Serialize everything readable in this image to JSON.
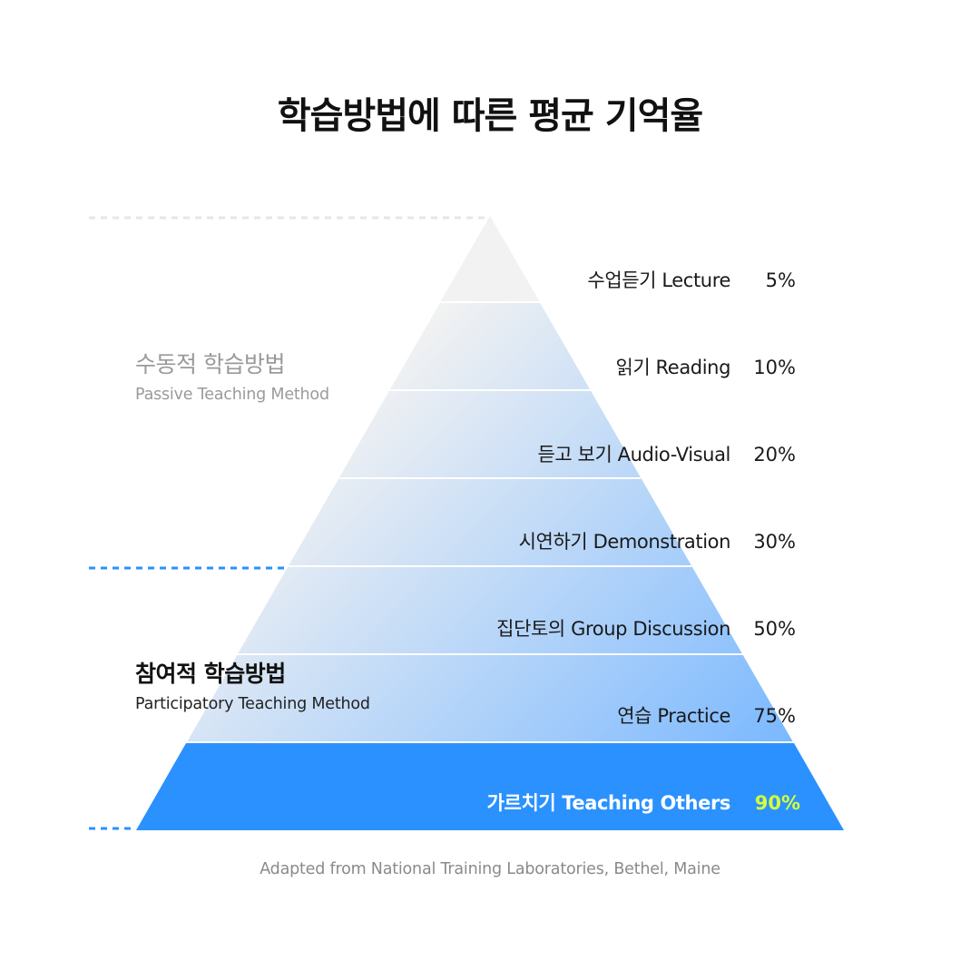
{
  "title": "학습방법에 따른 평균 기억율",
  "groups": {
    "passive": {
      "label_ko": "수동적 학습방법",
      "label_en": "Passive Teaching Method"
    },
    "participatory": {
      "label_ko": "참여적 학습방법",
      "label_en": "Participatory Teaching Method"
    }
  },
  "levels": [
    {
      "label": "수업듣기 Lecture",
      "value": "5%"
    },
    {
      "label": "읽기 Reading",
      "value": "10%"
    },
    {
      "label": "듣고 보기 Audio-Visual",
      "value": "20%"
    },
    {
      "label": "시연하기 Demonstration",
      "value": "30%"
    },
    {
      "label": "집단토의 Group Discussion",
      "value": "50%"
    },
    {
      "label": "연습 Practice",
      "value": "75%"
    },
    {
      "label": "가르치기 Teaching Others",
      "value": "90%"
    }
  ],
  "colors": {
    "top": "#f2f2f2",
    "gradient_end": "#7ab8ff",
    "highlight_fill": "#2a91ff",
    "highlight_value": "#d4ff3a",
    "dash_gray": "#e6e6e6",
    "dash_blue": "#2a91ff"
  },
  "source": "Adapted from National Training Laboratories, Bethel, Maine"
}
